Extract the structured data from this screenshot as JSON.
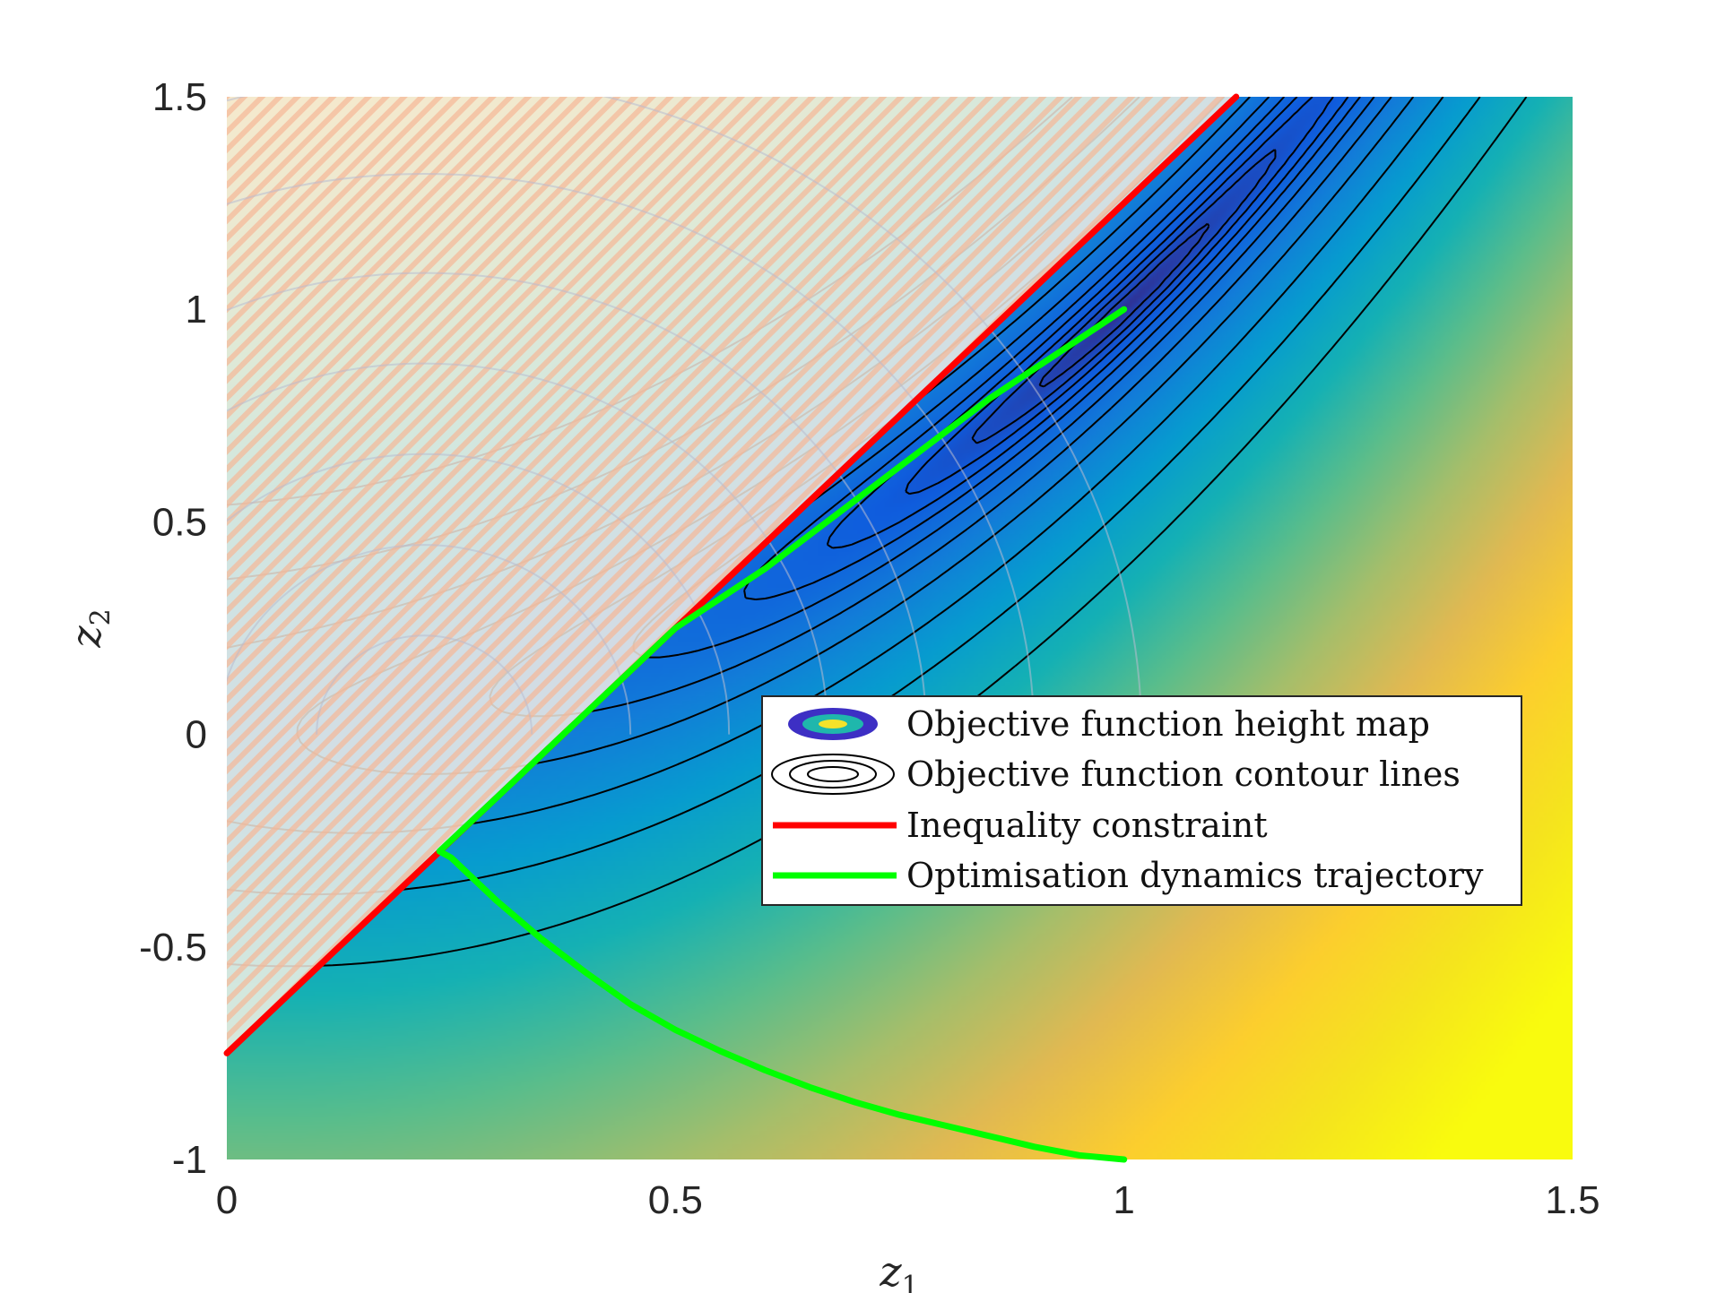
{
  "chart_data": {
    "type": "heatmap",
    "title": "",
    "xlabel": "z",
    "xlabel_sub": "1",
    "ylabel": "z",
    "ylabel_sub": "2",
    "xlim": [
      0,
      1.5
    ],
    "ylim": [
      -1,
      1.5
    ],
    "xticks": [
      {
        "value": 0,
        "label": "0"
      },
      {
        "value": 0.5,
        "label": "0.5"
      },
      {
        "value": 1,
        "label": "1"
      },
      {
        "value": 1.5,
        "label": "1.5"
      }
    ],
    "yticks": [
      {
        "value": -1,
        "label": "-1"
      },
      {
        "value": -0.5,
        "label": "-0.5"
      },
      {
        "value": 0,
        "label": "0"
      },
      {
        "value": 0.5,
        "label": "0.5"
      },
      {
        "value": 1,
        "label": "1"
      },
      {
        "value": 1.5,
        "label": "1.5"
      }
    ],
    "grid": false,
    "legend_position": "center-right",
    "infeasible_region": "hatched, above inequality constraint",
    "series": [
      {
        "name": "Objective function height map",
        "kind": "heatmap",
        "colormap": "parula",
        "minimum": [
          1,
          1
        ]
      },
      {
        "name": "Objective function contour lines",
        "kind": "contour",
        "color": "#000000"
      },
      {
        "name": "Inequality constraint",
        "kind": "line",
        "color": "#ff0000",
        "x": [
          0,
          1.125
        ],
        "y": [
          -0.75,
          1.5
        ]
      },
      {
        "name": "Optimisation dynamics trajectory",
        "kind": "line",
        "color": "#00ff00",
        "x": [
          1.0,
          0.95,
          0.9,
          0.85,
          0.8,
          0.75,
          0.7,
          0.65,
          0.6,
          0.55,
          0.5,
          0.45,
          0.4,
          0.35,
          0.3,
          0.25,
          0.237,
          0.3,
          0.36,
          0.42,
          0.5,
          0.55,
          0.6,
          0.65,
          0.7,
          0.75,
          0.8,
          0.85,
          0.9,
          0.95,
          1.0
        ],
        "y": [
          -1.0,
          -0.99,
          -0.97,
          -0.945,
          -0.92,
          -0.895,
          -0.865,
          -0.83,
          -0.79,
          -0.745,
          -0.695,
          -0.635,
          -0.56,
          -0.48,
          -0.39,
          -0.29,
          -0.275,
          -0.15,
          -0.03,
          0.09,
          0.25,
          0.32,
          0.39,
          0.47,
          0.55,
          0.63,
          0.71,
          0.79,
          0.86,
          0.93,
          1.0
        ]
      }
    ]
  }
}
